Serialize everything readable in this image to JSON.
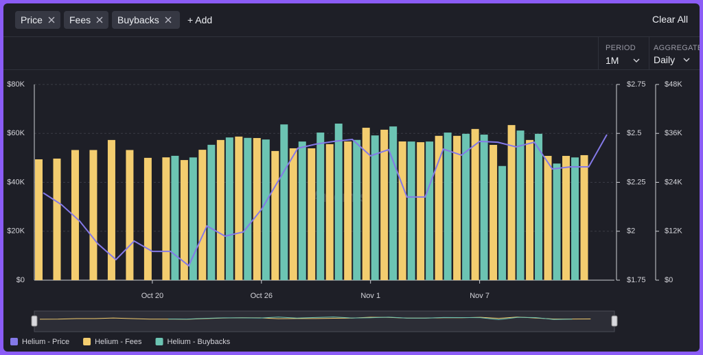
{
  "toolbar": {
    "filters": [
      "Price",
      "Fees",
      "Buybacks"
    ],
    "add": "+ Add",
    "clear": "Clear All",
    "period_label": "PERIOD",
    "period_value": "1M",
    "aggregate_label": "AGGREGATE",
    "aggregate_value": "Daily"
  },
  "chart_data": {
    "type": "bar-line",
    "watermark": "Artemis",
    "categories": [
      null,
      null,
      null,
      null,
      null,
      null,
      "Oct 20",
      null,
      null,
      null,
      null,
      null,
      "Oct 26",
      null,
      null,
      null,
      null,
      null,
      "Nov 1",
      null,
      null,
      null,
      null,
      null,
      "Nov 7",
      null,
      null,
      null,
      null,
      null,
      null,
      null
    ],
    "series": [
      {
        "name": "Helium - Price",
        "color": "#8479e8",
        "type": "line",
        "axis": "y2",
        "values": [
          2.196,
          2.136,
          2.052,
          1.936,
          1.855,
          1.95,
          1.897,
          1.897,
          1.824,
          2.027,
          1.975,
          1.996,
          2.111,
          2.269,
          2.424,
          2.445,
          2.459,
          2.469,
          2.385,
          2.417,
          2.175,
          2.175,
          2.42,
          2.389,
          2.459,
          2.455,
          2.431,
          2.455,
          2.318,
          2.329,
          2.329,
          2.494
        ]
      },
      {
        "name": "Helium - Fees",
        "color": "#f3cd6f",
        "type": "bar",
        "axis": "y",
        "values": [
          49400,
          49700,
          53200,
          53200,
          57300,
          53200,
          50000,
          50200,
          49100,
          53300,
          57300,
          58700,
          58100,
          52800,
          53900,
          53900,
          55600,
          56700,
          62300,
          61500,
          56700,
          56400,
          59000,
          59000,
          61800,
          55300,
          63400,
          57300,
          50800,
          50800,
          51100,
          null
        ]
      },
      {
        "name": "Helium - Buybacks",
        "color": "#6cc4b3",
        "type": "bar",
        "axis": "y3",
        "values": [
          null,
          null,
          null,
          null,
          null,
          null,
          null,
          30500,
          30100,
          33200,
          35000,
          34900,
          34500,
          38200,
          34000,
          36200,
          38400,
          34400,
          35500,
          37700,
          34000,
          34000,
          36200,
          35900,
          35700,
          28000,
          36700,
          35900,
          28600,
          30100,
          null,
          null
        ]
      }
    ],
    "ylim": [
      0,
      80000
    ],
    "yticks": [
      {
        "value": 0,
        "label": "$0"
      },
      {
        "value": 20000,
        "label": "$20K"
      },
      {
        "value": 40000,
        "label": "$40K"
      },
      {
        "value": 60000,
        "label": "$60K"
      },
      {
        "value": 80000,
        "label": "$80K"
      }
    ],
    "y2lim": [
      1.75,
      2.75
    ],
    "y2ticks": [
      {
        "value": 1.75,
        "label": "$1.75"
      },
      {
        "value": 2,
        "label": "$2"
      },
      {
        "value": 2.25,
        "label": "$2.25"
      },
      {
        "value": 2.5,
        "label": "$2.5"
      },
      {
        "value": 2.75,
        "label": "$2.75"
      }
    ],
    "y3lim": [
      0,
      48000
    ],
    "y3ticks": [
      {
        "value": 0,
        "label": "$0"
      },
      {
        "value": 12000,
        "label": "$12K"
      },
      {
        "value": 24000,
        "label": "$24K"
      },
      {
        "value": 36000,
        "label": "$36K"
      },
      {
        "value": 48000,
        "label": "$48K"
      }
    ],
    "grid": true,
    "legend": "bottom-left"
  }
}
